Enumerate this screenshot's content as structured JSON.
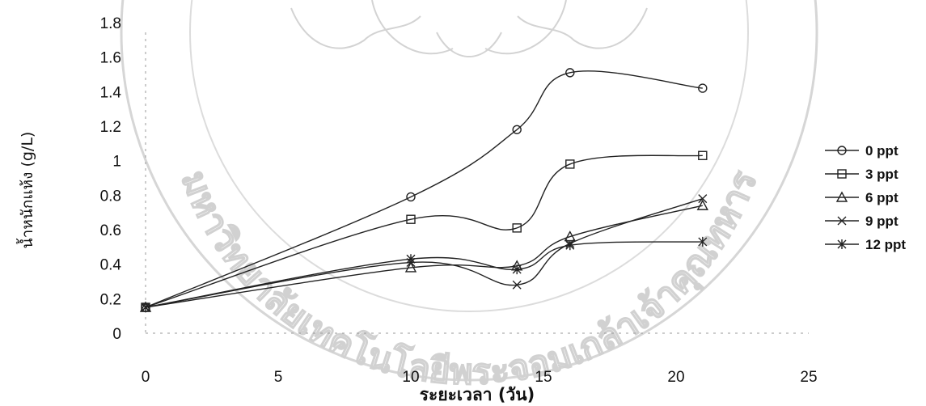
{
  "watermark": {
    "text": "มหาวิทยาลัยเทคโนโลยีพระจอมเกล้าเจ้าคุณทหาร",
    "kind": "seal"
  },
  "chart_data": {
    "type": "line",
    "title": "",
    "xlabel": "ระยะเวลา (วัน)",
    "ylabel": "น้ำหนักแห้ง (g/L)",
    "xlim": [
      0,
      25
    ],
    "ylim": [
      0,
      1.8
    ],
    "x_ticks": [
      "0",
      "5",
      "10",
      "15",
      "20",
      "25"
    ],
    "y_ticks": [
      "0",
      "0.2",
      "0.4",
      "0.6",
      "0.8",
      "1",
      "1.2",
      "1.4",
      "1.6",
      "1.8"
    ],
    "x_tick_values": [
      0,
      5,
      10,
      15,
      20,
      25
    ],
    "y_tick_values": [
      0,
      0.2,
      0.4,
      0.6,
      0.8,
      1,
      1.2,
      1.4,
      1.6,
      1.8
    ],
    "grid": false,
    "legend_position": "right",
    "series": [
      {
        "name": "0 ppt",
        "marker": "circle",
        "color": "#222222",
        "x": [
          0,
          10,
          14,
          16,
          21
        ],
        "y": [
          0.15,
          0.79,
          1.18,
          1.51,
          1.42
        ]
      },
      {
        "name": "3 ppt",
        "marker": "square",
        "color": "#222222",
        "x": [
          0,
          10,
          14,
          16,
          21
        ],
        "y": [
          0.15,
          0.66,
          0.61,
          0.98,
          1.03
        ]
      },
      {
        "name": "6 ppt",
        "marker": "triangle",
        "color": "#222222",
        "x": [
          0,
          10,
          14,
          16,
          21
        ],
        "y": [
          0.15,
          0.38,
          0.39,
          0.56,
          0.74
        ]
      },
      {
        "name": "9 ppt",
        "marker": "x",
        "color": "#222222",
        "x": [
          0,
          10,
          14,
          16,
          21
        ],
        "y": [
          0.15,
          0.41,
          0.28,
          0.52,
          0.78
        ]
      },
      {
        "name": "12 ppt",
        "marker": "asterisk",
        "color": "#222222",
        "x": [
          0,
          10,
          14,
          16,
          21
        ],
        "y": [
          0.15,
          0.43,
          0.37,
          0.51,
          0.53
        ]
      }
    ]
  }
}
